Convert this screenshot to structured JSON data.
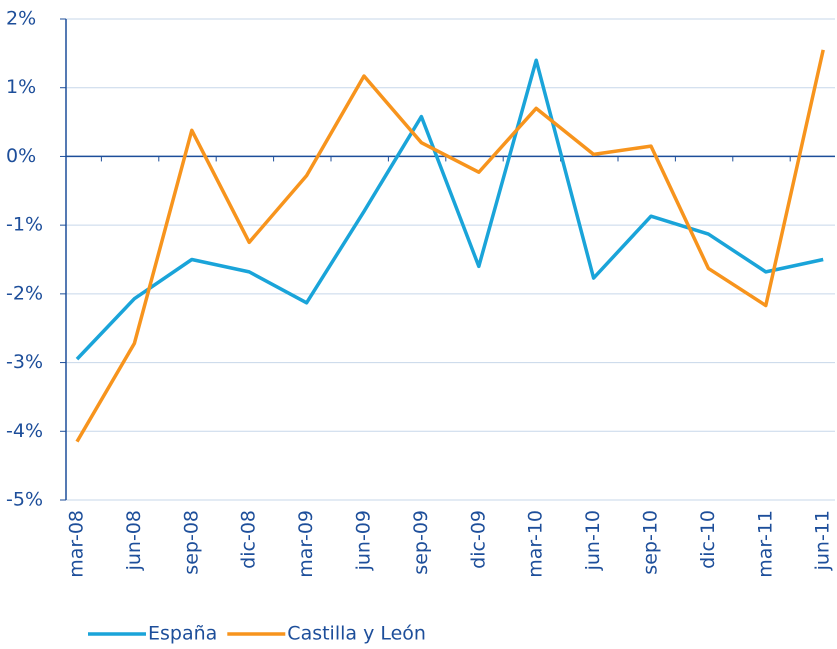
{
  "chart_data": {
    "type": "line",
    "categories": [
      "mar-08",
      "jun-08",
      "sep-08",
      "dic-08",
      "mar-09",
      "jun-09",
      "sep-09",
      "dic-09",
      "mar-10",
      "jun-10",
      "sep-10",
      "dic-10",
      "mar-11",
      "jun-11"
    ],
    "series": [
      {
        "name": "España",
        "color": "#1aa4d9",
        "values": [
          -2.95,
          -2.07,
          -1.5,
          -1.68,
          -2.13,
          -0.8,
          0.58,
          -1.6,
          1.4,
          -1.77,
          -0.87,
          -1.13,
          -1.68,
          -1.5
        ]
      },
      {
        "name": "Castilla y León",
        "color": "#f7941d",
        "values": [
          -4.15,
          -2.72,
          0.38,
          -1.25,
          -0.28,
          1.17,
          0.2,
          -0.23,
          0.7,
          0.03,
          0.15,
          -1.63,
          -2.17,
          1.55
        ]
      }
    ],
    "ylim": [
      -5,
      2
    ],
    "yticks": [
      {
        "value": -5,
        "label": "-5%"
      },
      {
        "value": -4,
        "label": "-4%"
      },
      {
        "value": -3,
        "label": "-3%"
      },
      {
        "value": -2,
        "label": "-2%"
      },
      {
        "value": -1,
        "label": "-1%"
      },
      {
        "value": 0,
        "label": "0%"
      },
      {
        "value": 1,
        "label": "1%"
      },
      {
        "value": 2,
        "label": "2%"
      }
    ],
    "grid": true,
    "legend": "bottom"
  }
}
